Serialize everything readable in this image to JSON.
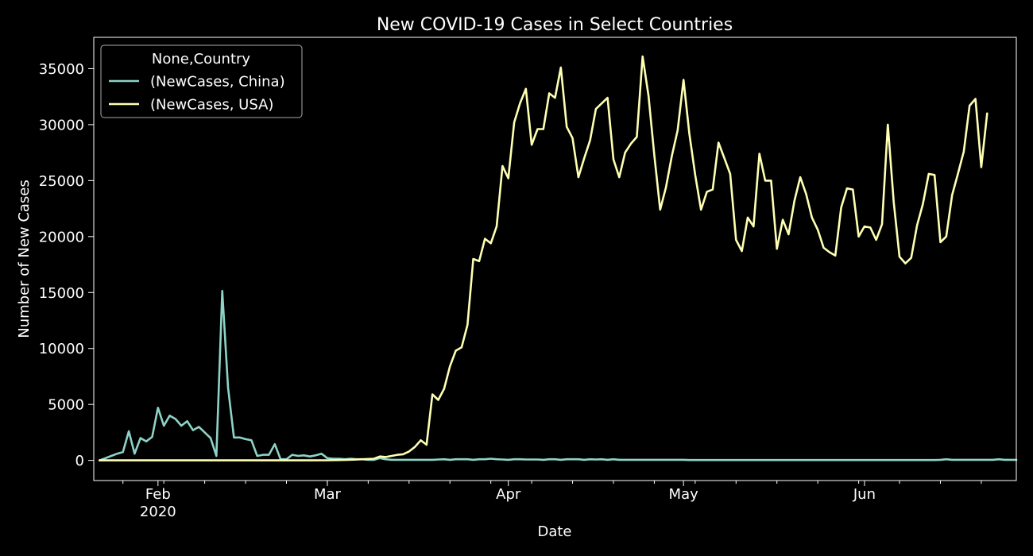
{
  "chart_data": {
    "type": "line",
    "title": "New COVID-19 Cases in Select Countries",
    "xlabel": "Date",
    "ylabel": "Number of New Cases",
    "x_range": [
      "2020-01-21",
      "2020-06-27"
    ],
    "ylim": [
      -1800,
      37800
    ],
    "yticks": [
      0,
      5000,
      10000,
      15000,
      20000,
      25000,
      30000,
      35000
    ],
    "ytick_labels": [
      "0",
      "5000",
      "10000",
      "15000",
      "20000",
      "25000",
      "30000",
      "35000"
    ],
    "xticks": [
      {
        "date": "2020-02-01",
        "label": "Feb",
        "sublabel": "2020"
      },
      {
        "date": "2020-03-01",
        "label": "Mar",
        "sublabel": ""
      },
      {
        "date": "2020-04-01",
        "label": "Apr",
        "sublabel": ""
      },
      {
        "date": "2020-05-01",
        "label": "May",
        "sublabel": ""
      },
      {
        "date": "2020-06-01",
        "label": "Jun",
        "sublabel": ""
      }
    ],
    "grid": false,
    "legend": {
      "title": "None,Country",
      "position": "top-left",
      "entries": [
        "(NewCases, China)",
        "(NewCases, USA)"
      ]
    },
    "series": [
      {
        "name": "(NewCases, China)",
        "color": "#8dd3c7",
        "points": [
          [
            "2020-01-22",
            0
          ],
          [
            "2020-01-23",
            200
          ],
          [
            "2020-01-24",
            400
          ],
          [
            "2020-01-25",
            600
          ],
          [
            "2020-01-26",
            750
          ],
          [
            "2020-01-27",
            2600
          ],
          [
            "2020-01-28",
            600
          ],
          [
            "2020-01-29",
            2000
          ],
          [
            "2020-01-30",
            1700
          ],
          [
            "2020-01-31",
            2100
          ],
          [
            "2020-02-01",
            4700
          ],
          [
            "2020-02-02",
            3100
          ],
          [
            "2020-02-03",
            4000
          ],
          [
            "2020-02-04",
            3700
          ],
          [
            "2020-02-05",
            3100
          ],
          [
            "2020-02-06",
            3500
          ],
          [
            "2020-02-07",
            2700
          ],
          [
            "2020-02-08",
            3000
          ],
          [
            "2020-02-09",
            2500
          ],
          [
            "2020-02-10",
            2000
          ],
          [
            "2020-02-11",
            400
          ],
          [
            "2020-02-12",
            15150
          ],
          [
            "2020-02-13",
            6500
          ],
          [
            "2020-02-14",
            2050
          ],
          [
            "2020-02-15",
            2050
          ],
          [
            "2020-02-16",
            1900
          ],
          [
            "2020-02-17",
            1800
          ],
          [
            "2020-02-18",
            400
          ],
          [
            "2020-02-19",
            500
          ],
          [
            "2020-02-20",
            500
          ],
          [
            "2020-02-21",
            1450
          ],
          [
            "2020-02-22",
            100
          ],
          [
            "2020-02-23",
            100
          ],
          [
            "2020-02-24",
            500
          ],
          [
            "2020-02-25",
            400
          ],
          [
            "2020-02-26",
            450
          ],
          [
            "2020-02-27",
            350
          ],
          [
            "2020-02-28",
            450
          ],
          [
            "2020-02-29",
            600
          ],
          [
            "2020-03-01",
            200
          ],
          [
            "2020-03-02",
            150
          ],
          [
            "2020-03-03",
            150
          ],
          [
            "2020-03-04",
            100
          ],
          [
            "2020-03-05",
            150
          ],
          [
            "2020-03-06",
            100
          ],
          [
            "2020-03-07",
            100
          ],
          [
            "2020-03-08",
            50
          ],
          [
            "2020-03-09",
            50
          ],
          [
            "2020-03-10",
            200
          ],
          [
            "2020-03-11",
            100
          ],
          [
            "2020-03-12",
            50
          ],
          [
            "2020-03-13",
            50
          ],
          [
            "2020-03-14",
            50
          ],
          [
            "2020-03-15",
            50
          ],
          [
            "2020-03-16",
            50
          ],
          [
            "2020-03-17",
            50
          ],
          [
            "2020-03-18",
            50
          ],
          [
            "2020-03-19",
            50
          ],
          [
            "2020-03-20",
            80
          ],
          [
            "2020-03-21",
            100
          ],
          [
            "2020-03-22",
            50
          ],
          [
            "2020-03-23",
            100
          ],
          [
            "2020-03-24",
            100
          ],
          [
            "2020-03-25",
            100
          ],
          [
            "2020-03-26",
            50
          ],
          [
            "2020-03-27",
            100
          ],
          [
            "2020-03-28",
            100
          ],
          [
            "2020-03-29",
            150
          ],
          [
            "2020-03-30",
            100
          ],
          [
            "2020-03-31",
            80
          ],
          [
            "2020-04-01",
            50
          ],
          [
            "2020-04-02",
            100
          ],
          [
            "2020-04-03",
            100
          ],
          [
            "2020-04-04",
            80
          ],
          [
            "2020-04-05",
            80
          ],
          [
            "2020-04-06",
            80
          ],
          [
            "2020-04-07",
            50
          ],
          [
            "2020-04-08",
            100
          ],
          [
            "2020-04-09",
            100
          ],
          [
            "2020-04-10",
            50
          ],
          [
            "2020-04-11",
            100
          ],
          [
            "2020-04-12",
            100
          ],
          [
            "2020-04-13",
            100
          ],
          [
            "2020-04-14",
            50
          ],
          [
            "2020-04-15",
            100
          ],
          [
            "2020-04-16",
            80
          ],
          [
            "2020-04-17",
            100
          ],
          [
            "2020-04-18",
            50
          ],
          [
            "2020-04-19",
            100
          ],
          [
            "2020-04-20",
            50
          ],
          [
            "2020-04-21",
            50
          ],
          [
            "2020-04-22",
            50
          ],
          [
            "2020-04-23",
            50
          ],
          [
            "2020-04-24",
            50
          ],
          [
            "2020-04-25",
            50
          ],
          [
            "2020-04-26",
            50
          ],
          [
            "2020-04-27",
            50
          ],
          [
            "2020-04-28",
            50
          ],
          [
            "2020-04-29",
            50
          ],
          [
            "2020-04-30",
            50
          ],
          [
            "2020-05-01",
            50
          ],
          [
            "2020-05-02",
            30
          ],
          [
            "2020-05-03",
            30
          ],
          [
            "2020-05-04",
            30
          ],
          [
            "2020-05-05",
            30
          ],
          [
            "2020-05-06",
            30
          ],
          [
            "2020-05-07",
            30
          ],
          [
            "2020-05-08",
            30
          ],
          [
            "2020-05-09",
            30
          ],
          [
            "2020-05-10",
            30
          ],
          [
            "2020-05-11",
            30
          ],
          [
            "2020-05-12",
            30
          ],
          [
            "2020-05-13",
            30
          ],
          [
            "2020-05-14",
            30
          ],
          [
            "2020-05-15",
            30
          ],
          [
            "2020-05-16",
            30
          ],
          [
            "2020-05-17",
            30
          ],
          [
            "2020-05-18",
            30
          ],
          [
            "2020-05-19",
            30
          ],
          [
            "2020-05-20",
            30
          ],
          [
            "2020-05-21",
            30
          ],
          [
            "2020-05-22",
            30
          ],
          [
            "2020-05-23",
            30
          ],
          [
            "2020-05-24",
            30
          ],
          [
            "2020-05-25",
            30
          ],
          [
            "2020-05-26",
            30
          ],
          [
            "2020-05-27",
            30
          ],
          [
            "2020-05-28",
            30
          ],
          [
            "2020-05-29",
            30
          ],
          [
            "2020-05-30",
            30
          ],
          [
            "2020-05-31",
            30
          ],
          [
            "2020-06-01",
            30
          ],
          [
            "2020-06-02",
            30
          ],
          [
            "2020-06-03",
            30
          ],
          [
            "2020-06-04",
            30
          ],
          [
            "2020-06-05",
            30
          ],
          [
            "2020-06-06",
            30
          ],
          [
            "2020-06-07",
            30
          ],
          [
            "2020-06-08",
            30
          ],
          [
            "2020-06-09",
            30
          ],
          [
            "2020-06-10",
            30
          ],
          [
            "2020-06-11",
            30
          ],
          [
            "2020-06-12",
            30
          ],
          [
            "2020-06-13",
            30
          ],
          [
            "2020-06-14",
            50
          ],
          [
            "2020-06-15",
            100
          ],
          [
            "2020-06-16",
            50
          ],
          [
            "2020-06-17",
            50
          ],
          [
            "2020-06-18",
            50
          ],
          [
            "2020-06-19",
            50
          ],
          [
            "2020-06-20",
            50
          ],
          [
            "2020-06-21",
            50
          ],
          [
            "2020-06-22",
            50
          ],
          [
            "2020-06-23",
            50
          ],
          [
            "2020-06-24",
            100
          ],
          [
            "2020-06-25",
            50
          ],
          [
            "2020-06-26",
            50
          ],
          [
            "2020-06-27",
            50
          ]
        ]
      },
      {
        "name": "(NewCases, USA)",
        "color": "#ffffb3",
        "points": [
          [
            "2020-01-22",
            0
          ],
          [
            "2020-02-20",
            0
          ],
          [
            "2020-02-25",
            0
          ],
          [
            "2020-03-01",
            10
          ],
          [
            "2020-03-03",
            30
          ],
          [
            "2020-03-05",
            60
          ],
          [
            "2020-03-07",
            100
          ],
          [
            "2020-03-09",
            150
          ],
          [
            "2020-03-10",
            350
          ],
          [
            "2020-03-11",
            300
          ],
          [
            "2020-03-12",
            400
          ],
          [
            "2020-03-13",
            500
          ],
          [
            "2020-03-14",
            550
          ],
          [
            "2020-03-15",
            800
          ],
          [
            "2020-03-16",
            1200
          ],
          [
            "2020-03-17",
            1800
          ],
          [
            "2020-03-18",
            1400
          ],
          [
            "2020-03-19",
            5900
          ],
          [
            "2020-03-20",
            5400
          ],
          [
            "2020-03-21",
            6400
          ],
          [
            "2020-03-22",
            8400
          ],
          [
            "2020-03-23",
            9800
          ],
          [
            "2020-03-24",
            10100
          ],
          [
            "2020-03-25",
            12100
          ],
          [
            "2020-03-26",
            18000
          ],
          [
            "2020-03-27",
            17800
          ],
          [
            "2020-03-28",
            19800
          ],
          [
            "2020-03-29",
            19400
          ],
          [
            "2020-03-30",
            20900
          ],
          [
            "2020-03-31",
            26300
          ],
          [
            "2020-04-01",
            25200
          ],
          [
            "2020-04-02",
            30200
          ],
          [
            "2020-04-03",
            31900
          ],
          [
            "2020-04-04",
            33200
          ],
          [
            "2020-04-05",
            28200
          ],
          [
            "2020-04-06",
            29600
          ],
          [
            "2020-04-07",
            29600
          ],
          [
            "2020-04-08",
            32800
          ],
          [
            "2020-04-09",
            32400
          ],
          [
            "2020-04-10",
            35100
          ],
          [
            "2020-04-11",
            29800
          ],
          [
            "2020-04-12",
            28800
          ],
          [
            "2020-04-13",
            25300
          ],
          [
            "2020-04-14",
            27000
          ],
          [
            "2020-04-15",
            28600
          ],
          [
            "2020-04-16",
            31400
          ],
          [
            "2020-04-17",
            31900
          ],
          [
            "2020-04-18",
            32400
          ],
          [
            "2020-04-19",
            26900
          ],
          [
            "2020-04-20",
            25300
          ],
          [
            "2020-04-21",
            27500
          ],
          [
            "2020-04-22",
            28300
          ],
          [
            "2020-04-23",
            28900
          ],
          [
            "2020-04-24",
            36100
          ],
          [
            "2020-04-25",
            32600
          ],
          [
            "2020-04-26",
            27300
          ],
          [
            "2020-04-27",
            22400
          ],
          [
            "2020-04-28",
            24400
          ],
          [
            "2020-04-29",
            27200
          ],
          [
            "2020-04-30",
            29500
          ],
          [
            "2020-05-01",
            34000
          ],
          [
            "2020-05-02",
            29200
          ],
          [
            "2020-05-03",
            25500
          ],
          [
            "2020-05-04",
            22400
          ],
          [
            "2020-05-05",
            24000
          ],
          [
            "2020-05-06",
            24200
          ],
          [
            "2020-05-07",
            28400
          ],
          [
            "2020-05-08",
            27000
          ],
          [
            "2020-05-09",
            25600
          ],
          [
            "2020-05-10",
            19700
          ],
          [
            "2020-05-11",
            18700
          ],
          [
            "2020-05-12",
            21700
          ],
          [
            "2020-05-13",
            20900
          ],
          [
            "2020-05-14",
            27400
          ],
          [
            "2020-05-15",
            25000
          ],
          [
            "2020-05-16",
            25000
          ],
          [
            "2020-05-17",
            18900
          ],
          [
            "2020-05-18",
            21500
          ],
          [
            "2020-05-19",
            20200
          ],
          [
            "2020-05-20",
            23200
          ],
          [
            "2020-05-21",
            25300
          ],
          [
            "2020-05-22",
            23800
          ],
          [
            "2020-05-23",
            21700
          ],
          [
            "2020-05-24",
            20600
          ],
          [
            "2020-05-25",
            19000
          ],
          [
            "2020-05-26",
            18600
          ],
          [
            "2020-05-27",
            18300
          ],
          [
            "2020-05-28",
            22600
          ],
          [
            "2020-05-29",
            24300
          ],
          [
            "2020-05-30",
            24200
          ],
          [
            "2020-05-31",
            20000
          ],
          [
            "2020-06-01",
            20900
          ],
          [
            "2020-06-02",
            20800
          ],
          [
            "2020-06-03",
            19700
          ],
          [
            "2020-06-04",
            21100
          ],
          [
            "2020-06-05",
            30000
          ],
          [
            "2020-06-06",
            23100
          ],
          [
            "2020-06-07",
            18200
          ],
          [
            "2020-06-08",
            17600
          ],
          [
            "2020-06-09",
            18100
          ],
          [
            "2020-06-10",
            21000
          ],
          [
            "2020-06-11",
            22900
          ],
          [
            "2020-06-12",
            25600
          ],
          [
            "2020-06-13",
            25500
          ],
          [
            "2020-06-14",
            19500
          ],
          [
            "2020-06-15",
            20000
          ],
          [
            "2020-06-16",
            23700
          ],
          [
            "2020-06-17",
            25600
          ],
          [
            "2020-06-18",
            27600
          ],
          [
            "2020-06-19",
            31700
          ],
          [
            "2020-06-20",
            32300
          ],
          [
            "2020-06-21",
            26200
          ],
          [
            "2020-06-22",
            31000
          ]
        ]
      }
    ]
  }
}
